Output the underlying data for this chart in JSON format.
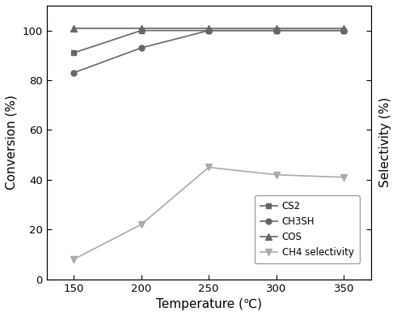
{
  "temperatures": [
    150,
    200,
    250,
    300,
    350
  ],
  "CS2": [
    91,
    100,
    100,
    100,
    100
  ],
  "CH3SH": [
    83,
    93,
    100,
    100,
    100
  ],
  "COS": [
    101,
    101,
    101,
    101,
    101
  ],
  "CH4_selectivity": [
    8,
    22,
    45,
    42,
    41
  ],
  "left_ylabel": "Conversion (%)",
  "right_ylabel": "Selectivity (%)",
  "xlabel": "Temperature (℃)",
  "ylim_left": [
    0,
    110
  ],
  "ylim_right": [
    0,
    110
  ],
  "yticks_left": [
    0,
    20,
    40,
    60,
    80,
    100
  ],
  "yticks_right": [
    0,
    20,
    40,
    60,
    80,
    100
  ],
  "xticks": [
    150,
    200,
    250,
    300,
    350
  ],
  "legend_labels": [
    "CS2",
    "CH3SH",
    "COS",
    "CH4 selectivity"
  ],
  "color_dark": "#666666",
  "color_light": "#aaaaaa",
  "bg_color": "#ffffff",
  "xlim": [
    130,
    370
  ]
}
